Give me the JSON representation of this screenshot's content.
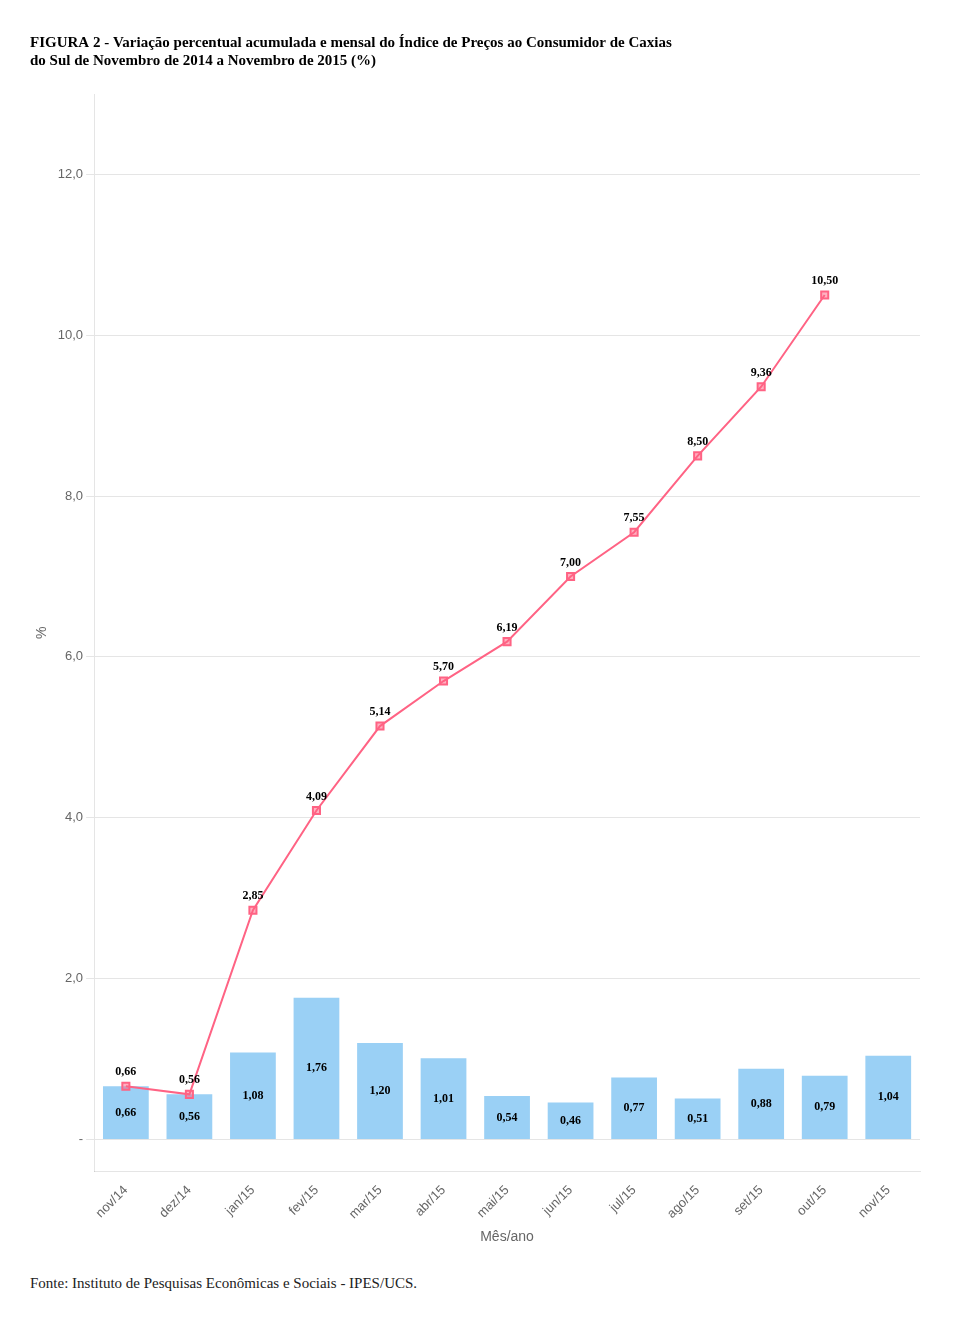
{
  "chart_data": {
    "type": "bar",
    "title": [
      "FIGURA 2 - Variação percentual acumulada e mensal do Índice de Preços ao Consumidor de Caxias",
      "do Sul de Novembro de 2014 a Novembro de 2015 (%)"
    ],
    "xlabel": "Mês/ano",
    "ylabel": "%",
    "categories": [
      "nov/14",
      "dez/14",
      "jan/15",
      "fev/15",
      "mar/15",
      "abr/15",
      "mai/15",
      "jun/15",
      "jul/15",
      "ago/15",
      "set/15",
      "out/15",
      "nov/15"
    ],
    "series": [
      {
        "type": "bar",
        "values": [
          0.66,
          0.56,
          1.08,
          1.76,
          1.2,
          1.01,
          0.54,
          0.46,
          0.77,
          0.51,
          0.88,
          0.79,
          1.04
        ],
        "value_labels": [
          "0,66",
          "0,56",
          "1,08",
          "1,76",
          "1,20",
          "1,01",
          "0,54",
          "0,46",
          "0,77",
          "0,51",
          "0,88",
          "0,79",
          "1,04"
        ]
      },
      {
        "type": "line",
        "marker": "square",
        "values": [
          0.66,
          0.56,
          2.85,
          4.09,
          5.14,
          5.7,
          6.19,
          7.0,
          7.55,
          8.5,
          9.36,
          10.5,
          null
        ],
        "value_labels": [
          "0,66",
          "0,56",
          "2,85",
          "4,09",
          "5,14",
          "5,70",
          "6,19",
          "7,00",
          "7,55",
          "8,50",
          "9,36",
          "10,50",
          null
        ]
      }
    ],
    "ylim": [
      -0.4,
      13.0
    ],
    "yticks": [
      {
        "value": 0.0,
        "label": "-"
      },
      {
        "value": 2.0,
        "label": "2,0"
      },
      {
        "value": 4.0,
        "label": "4,0"
      },
      {
        "value": 6.0,
        "label": "6,0"
      },
      {
        "value": 8.0,
        "label": "8,0"
      },
      {
        "value": 10.0,
        "label": "10,0"
      },
      {
        "value": 12.0,
        "label": "12,0"
      }
    ],
    "grid": true,
    "data_labels": true,
    "annotations": [
      "Fonte: Instituto de Pesquisas Econômicas e Sociais - IPES/UCS."
    ]
  }
}
